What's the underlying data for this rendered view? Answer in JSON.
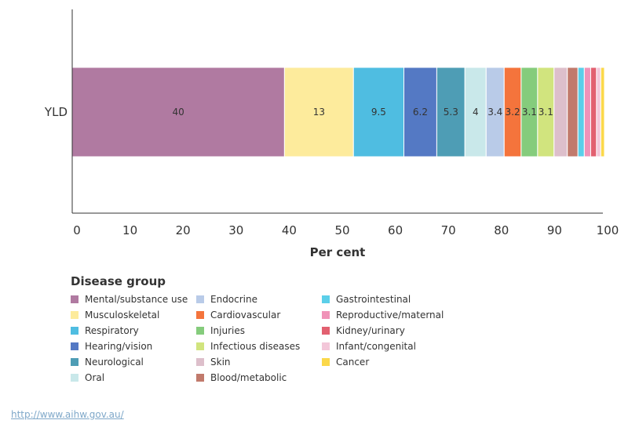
{
  "chart_data": {
    "type": "bar",
    "orientation": "horizontal",
    "stacked": true,
    "categories": [
      "YLD"
    ],
    "xlabel": "Per cent",
    "xlim": [
      0,
      100
    ],
    "xticks": [
      "0",
      "10",
      "20",
      "30",
      "40",
      "50",
      "60",
      "70",
      "80",
      "90",
      "100"
    ],
    "grid": false,
    "legend_title": "Disease group",
    "legend_position": "bottom-left",
    "series": [
      {
        "name": "Mental/substance use",
        "values": [
          40
        ],
        "label": "40",
        "color": "#b07aa1"
      },
      {
        "name": "Musculoskeletal",
        "values": [
          13
        ],
        "label": "13",
        "color": "#fdeb9c"
      },
      {
        "name": "Respiratory",
        "values": [
          9.5
        ],
        "label": "9.5",
        "color": "#4fbde1"
      },
      {
        "name": "Hearing/vision",
        "values": [
          6.2
        ],
        "label": "6.2",
        "color": "#5479c4"
      },
      {
        "name": "Neurological",
        "values": [
          5.3
        ],
        "label": "5.3",
        "color": "#4e9db5"
      },
      {
        "name": "Oral",
        "values": [
          4
        ],
        "label": "4",
        "color": "#c9e8ea"
      },
      {
        "name": "Endocrine",
        "values": [
          3.4
        ],
        "label": "3.4",
        "color": "#b9cbe8"
      },
      {
        "name": "Cardiovascular",
        "values": [
          3.2
        ],
        "label": "3.2",
        "color": "#f4743c"
      },
      {
        "name": "Injuries",
        "values": [
          3.1
        ],
        "label": "3.1",
        "color": "#85cc7c"
      },
      {
        "name": "Infectious diseases",
        "values": [
          3.1
        ],
        "label": "3.1",
        "color": "#d1e47e"
      },
      {
        "name": "Skin",
        "values": [
          2.5
        ],
        "label": "",
        "color": "#ddbfcb"
      },
      {
        "name": "Blood/metabolic",
        "values": [
          2
        ],
        "label": "",
        "color": "#c17a6c"
      },
      {
        "name": "Gastrointestinal",
        "values": [
          1.2
        ],
        "label": "",
        "color": "#5bcfe9"
      },
      {
        "name": "Reproductive/maternal",
        "values": [
          1.2
        ],
        "label": "",
        "color": "#f093b8"
      },
      {
        "name": "Kidney/urinary",
        "values": [
          1.1
        ],
        "label": "",
        "color": "#e26070"
      },
      {
        "name": "Infant/congenital",
        "values": [
          0.8
        ],
        "label": "",
        "color": "#f3c7d9"
      },
      {
        "name": "Cancer",
        "values": [
          0.7
        ],
        "label": "",
        "color": "#fbd84a"
      }
    ]
  },
  "footer": {
    "source_link": "http://www.aihw.gov.au/"
  }
}
